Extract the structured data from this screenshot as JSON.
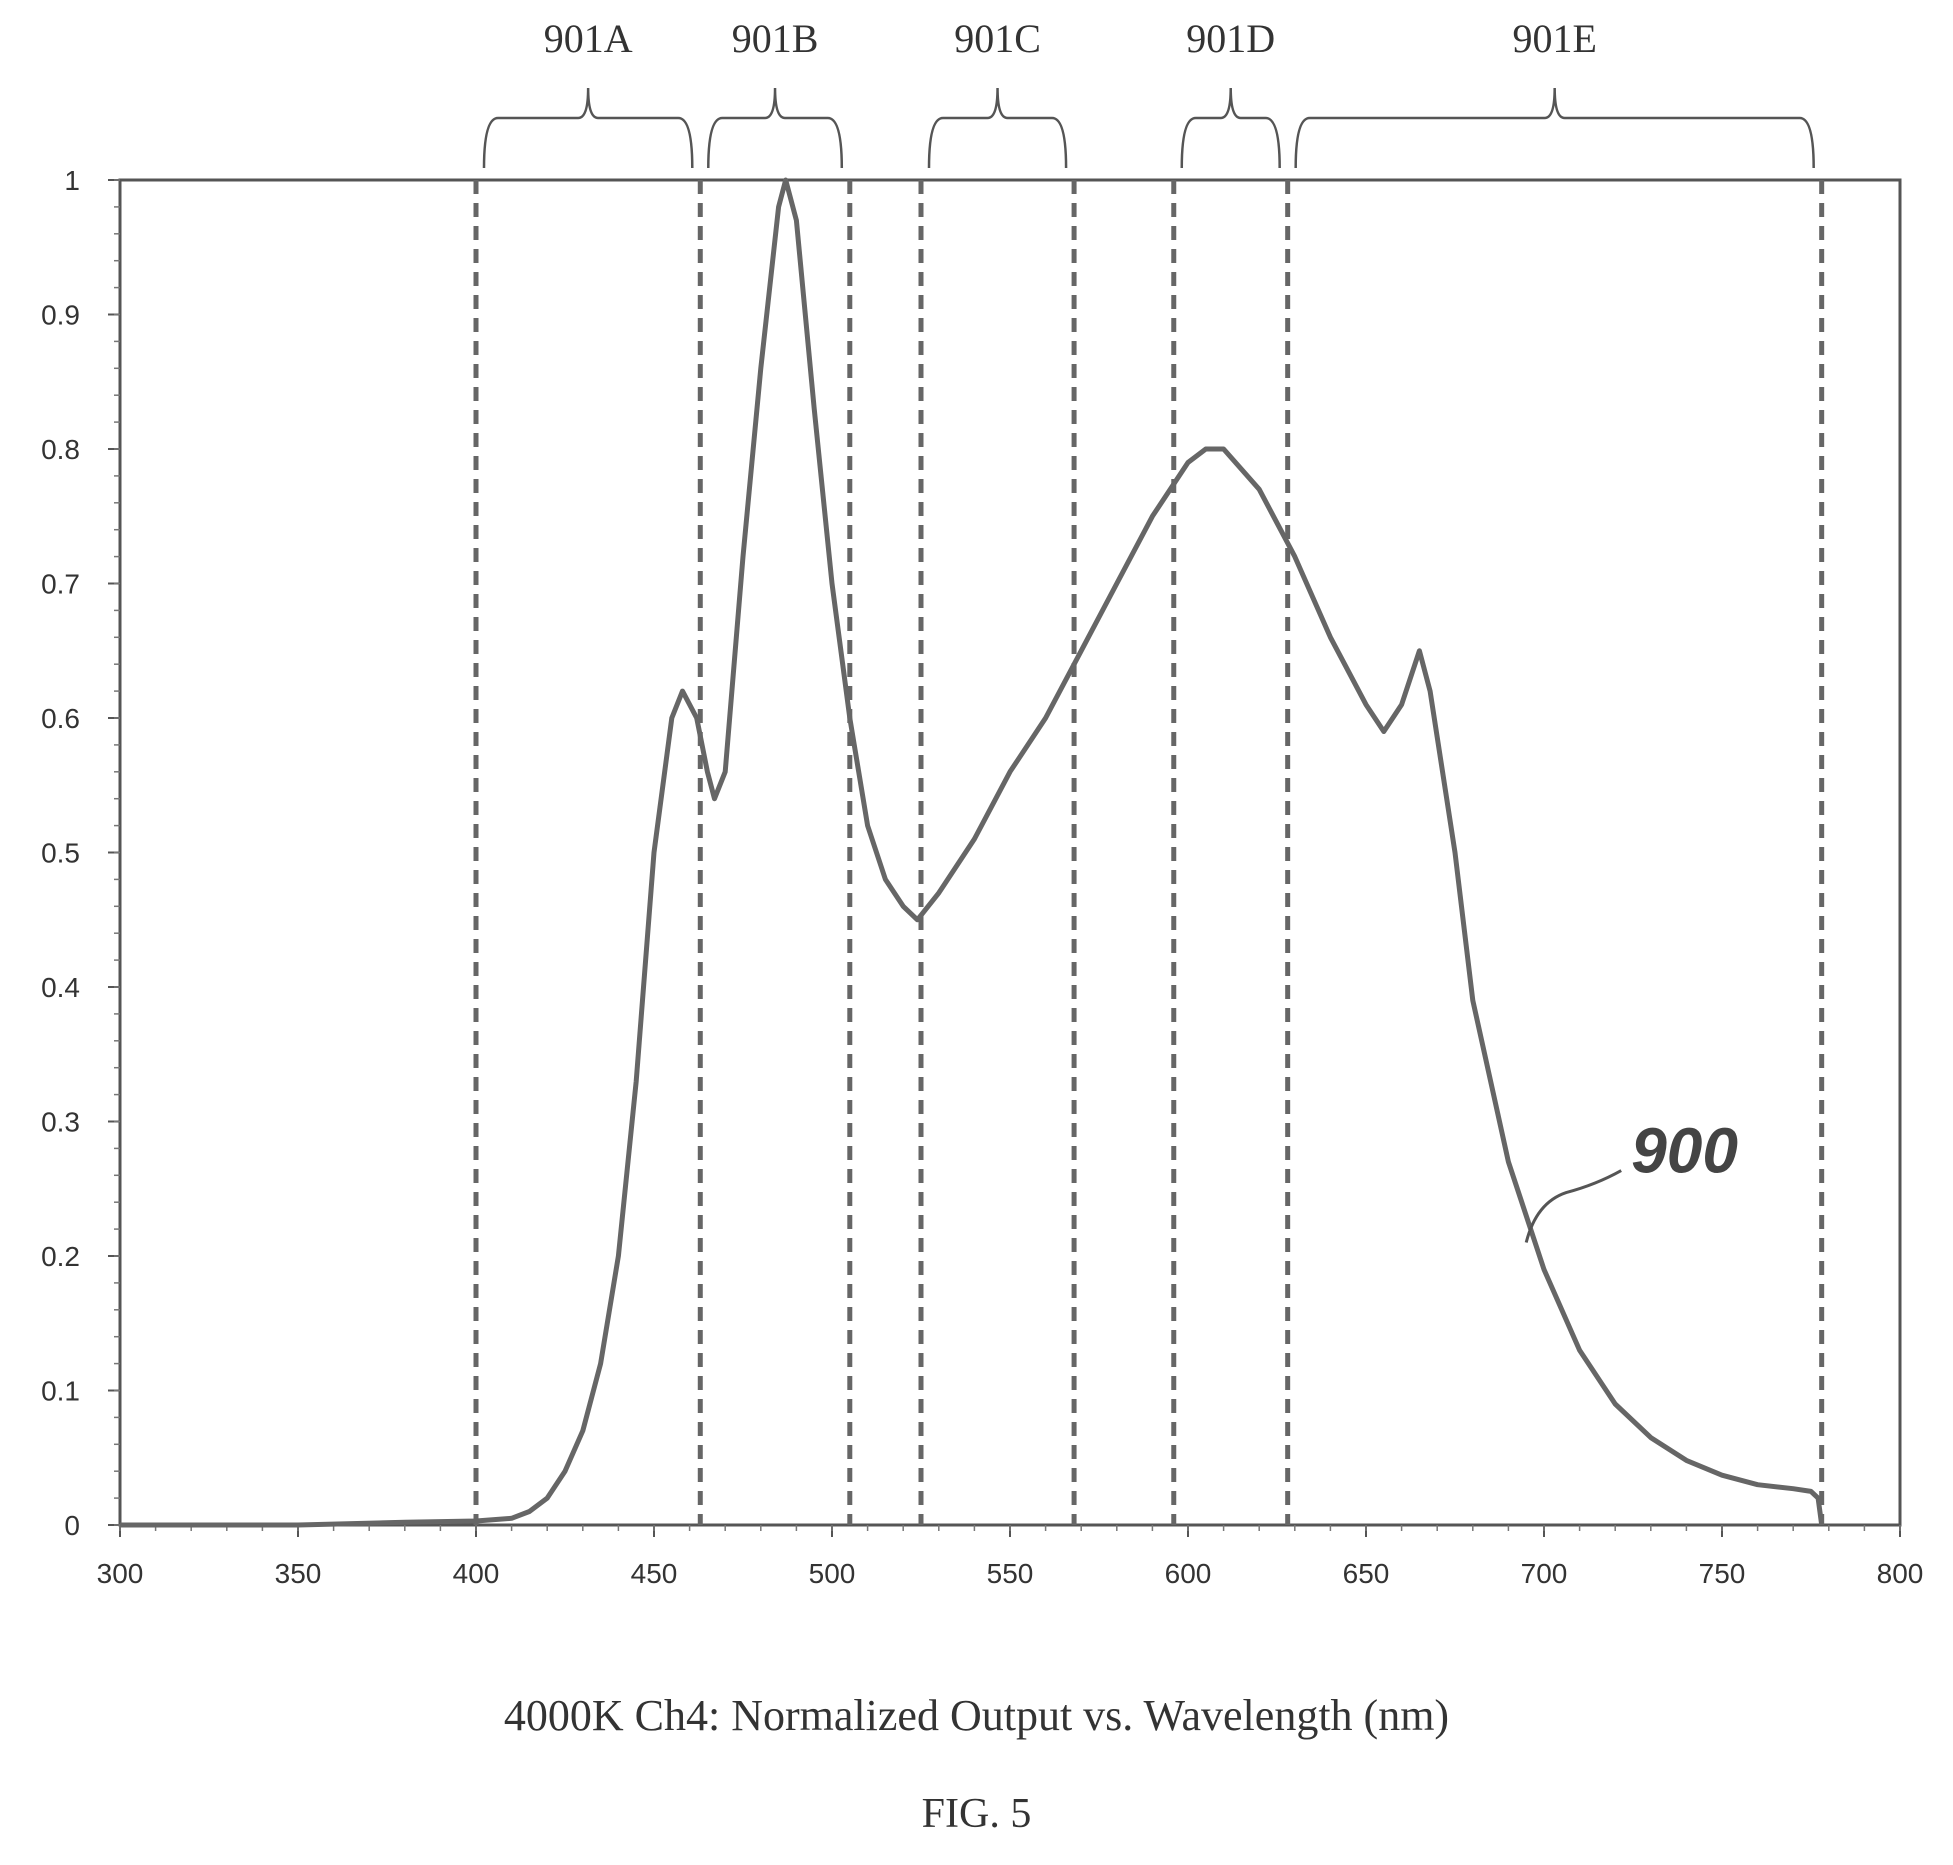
{
  "chart_data": {
    "type": "line",
    "title": "4000K Ch4: Normalized Output vs. Wavelength (nm)",
    "figure_label": "FIG. 5",
    "xlim": [
      300,
      800
    ],
    "ylim": [
      0,
      1
    ],
    "x_ticks": [
      "300",
      "350",
      "400",
      "450",
      "500",
      "550",
      "600",
      "650",
      "700",
      "750",
      "800"
    ],
    "y_ticks": [
      "0",
      "0.1",
      "0.2",
      "0.3",
      "0.4",
      "0.5",
      "0.6",
      "0.7",
      "0.8",
      "0.9",
      "1"
    ],
    "grid": false,
    "series": [
      {
        "name": "900",
        "points": [
          [
            300,
            0.0
          ],
          [
            350,
            0.0
          ],
          [
            380,
            0.002
          ],
          [
            400,
            0.003
          ],
          [
            410,
            0.005
          ],
          [
            415,
            0.01
          ],
          [
            420,
            0.02
          ],
          [
            425,
            0.04
          ],
          [
            430,
            0.07
          ],
          [
            435,
            0.12
          ],
          [
            440,
            0.2
          ],
          [
            445,
            0.33
          ],
          [
            450,
            0.5
          ],
          [
            455,
            0.6
          ],
          [
            458,
            0.62
          ],
          [
            462,
            0.6
          ],
          [
            465,
            0.56
          ],
          [
            467,
            0.54
          ],
          [
            470,
            0.56
          ],
          [
            475,
            0.72
          ],
          [
            480,
            0.86
          ],
          [
            485,
            0.98
          ],
          [
            487,
            1.0
          ],
          [
            490,
            0.97
          ],
          [
            495,
            0.83
          ],
          [
            500,
            0.7
          ],
          [
            505,
            0.6
          ],
          [
            510,
            0.52
          ],
          [
            515,
            0.48
          ],
          [
            520,
            0.46
          ],
          [
            524,
            0.45
          ],
          [
            530,
            0.47
          ],
          [
            540,
            0.51
          ],
          [
            550,
            0.56
          ],
          [
            560,
            0.6
          ],
          [
            570,
            0.65
          ],
          [
            580,
            0.7
          ],
          [
            590,
            0.75
          ],
          [
            600,
            0.79
          ],
          [
            605,
            0.8
          ],
          [
            610,
            0.8
          ],
          [
            620,
            0.77
          ],
          [
            630,
            0.72
          ],
          [
            640,
            0.66
          ],
          [
            650,
            0.61
          ],
          [
            655,
            0.59
          ],
          [
            660,
            0.61
          ],
          [
            665,
            0.65
          ],
          [
            668,
            0.62
          ],
          [
            675,
            0.5
          ],
          [
            680,
            0.39
          ],
          [
            690,
            0.27
          ],
          [
            700,
            0.19
          ],
          [
            710,
            0.13
          ],
          [
            720,
            0.09
          ],
          [
            730,
            0.065
          ],
          [
            740,
            0.048
          ],
          [
            750,
            0.037
          ],
          [
            760,
            0.03
          ],
          [
            770,
            0.027
          ],
          [
            775,
            0.025
          ],
          [
            777,
            0.02
          ],
          [
            778,
            0.0
          ]
        ]
      }
    ],
    "vertical_lines": [
      400,
      463,
      505,
      525,
      568,
      596,
      628,
      778
    ],
    "regions": [
      {
        "label": "901A",
        "from": 400,
        "to": 463
      },
      {
        "label": "901B",
        "from": 463,
        "to": 505
      },
      {
        "label": "901C",
        "from": 525,
        "to": 568
      },
      {
        "label": "901D",
        "from": 596,
        "to": 628
      },
      {
        "label": "901E",
        "from": 628,
        "to": 778
      }
    ],
    "series_annotation": {
      "text": "900",
      "x": 695,
      "y": 0.21
    }
  }
}
